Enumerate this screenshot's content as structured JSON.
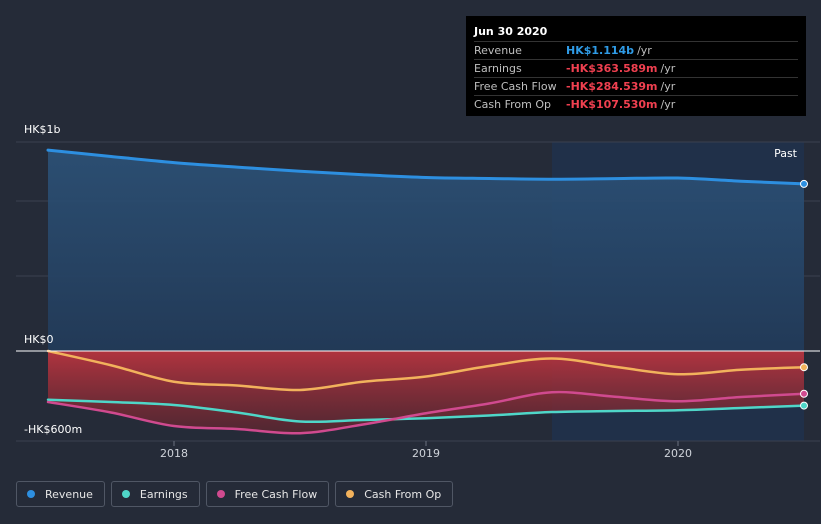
{
  "tooltip": {
    "date": "Jun 30 2020",
    "rows": [
      {
        "label": "Revenue",
        "value": "HK$1.114b",
        "unit": "/yr",
        "color": "#2f9be6"
      },
      {
        "label": "Earnings",
        "value": "-HK$363.589m",
        "unit": "/yr",
        "color": "#f04050"
      },
      {
        "label": "Free Cash Flow",
        "value": "-HK$284.539m",
        "unit": "/yr",
        "color": "#f04050"
      },
      {
        "label": "Cash From Op",
        "value": "-HK$107.530m",
        "unit": "/yr",
        "color": "#f04050"
      }
    ]
  },
  "legend": [
    {
      "label": "Revenue",
      "color": "#2d8fe0",
      "icon": "dot-icon"
    },
    {
      "label": "Earnings",
      "color": "#4fd6c8",
      "icon": "dot-icon"
    },
    {
      "label": "Free Cash Flow",
      "color": "#d04a8f",
      "icon": "dot-icon"
    },
    {
      "label": "Cash From Op",
      "color": "#f2b25c",
      "icon": "dot-icon"
    }
  ],
  "chart_data": {
    "type": "area",
    "y_unit": "HK$ millions",
    "ylim": [
      -600,
      1400
    ],
    "y_tick_labels": [
      {
        "value": 1000,
        "label": "HK$1b"
      },
      {
        "value": 0,
        "label": "HK$0"
      },
      {
        "value": -600,
        "label": "-HK$600m"
      }
    ],
    "x_tick_labels": [
      {
        "value": 2018,
        "label": "2018"
      },
      {
        "value": 2019,
        "label": "2019"
      },
      {
        "value": 2020,
        "label": "2020"
      }
    ],
    "xlim": [
      2017.5,
      2020.5
    ],
    "past_label": "Past",
    "past_start": 2019.5,
    "grid": true,
    "series": [
      {
        "name": "Revenue",
        "color": "#2d8fe0",
        "x": [
          2017.5,
          2017.75,
          2018.0,
          2018.25,
          2018.5,
          2018.75,
          2019.0,
          2019.25,
          2019.5,
          2019.75,
          2020.0,
          2020.25,
          2020.5
        ],
        "y": [
          1339,
          1297,
          1256,
          1226,
          1198,
          1175,
          1157,
          1150,
          1145,
          1149,
          1153,
          1132,
          1114
        ]
      },
      {
        "name": "Earnings",
        "color": "#4fd6c8",
        "x": [
          2017.5,
          2017.75,
          2018.0,
          2018.25,
          2018.5,
          2018.75,
          2019.0,
          2019.25,
          2019.5,
          2019.75,
          2020.0,
          2020.25,
          2020.5
        ],
        "y": [
          -325,
          -340,
          -360,
          -410,
          -470,
          -460,
          -448,
          -430,
          -407,
          -400,
          -395,
          -380,
          -364
        ]
      },
      {
        "name": "Free Cash Flow",
        "color": "#d04a8f",
        "x": [
          2017.5,
          2017.75,
          2018.0,
          2018.25,
          2018.5,
          2018.75,
          2019.0,
          2019.25,
          2019.5,
          2019.75,
          2020.0,
          2020.25,
          2020.5
        ],
        "y": [
          -340,
          -410,
          -500,
          -520,
          -548,
          -490,
          -415,
          -350,
          -275,
          -305,
          -335,
          -307,
          -285
        ]
      },
      {
        "name": "Cash From Op",
        "color": "#f2b25c",
        "x": [
          2017.5,
          2017.75,
          2018.0,
          2018.25,
          2018.5,
          2018.75,
          2019.0,
          2019.25,
          2019.5,
          2019.75,
          2020.0,
          2020.25,
          2020.5
        ],
        "y": [
          0,
          -95,
          -205,
          -230,
          -260,
          -205,
          -170,
          -100,
          -50,
          -105,
          -155,
          -125,
          -108
        ]
      }
    ]
  }
}
